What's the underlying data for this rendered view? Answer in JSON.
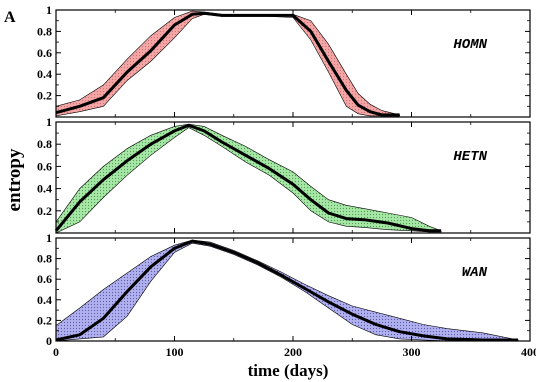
{
  "figure": {
    "panel_letter": "A",
    "ylabel": "entropy",
    "xlabel": "time (days)",
    "x_ticks": [
      "0",
      "100",
      "200",
      "300",
      "400"
    ],
    "y_ticks": [
      "0.2",
      "0.4",
      "0.6",
      "0.8",
      "1"
    ],
    "bottom_y_ticks": [
      "0",
      "0.2",
      "0.4",
      "0.6",
      "0.8",
      "1"
    ]
  },
  "chart_data": [
    {
      "type": "line",
      "label": "HOMN",
      "xlim": [
        0,
        400
      ],
      "ylim": [
        0,
        1
      ],
      "band_color": "#f4a6a6",
      "band_hatch_color": "#d07070",
      "mean": {
        "x": [
          0,
          20,
          40,
          60,
          80,
          100,
          115,
          125,
          140,
          160,
          180,
          200,
          215,
          230,
          245,
          255,
          265,
          275,
          290
        ],
        "y": [
          0.04,
          0.1,
          0.18,
          0.42,
          0.62,
          0.86,
          0.96,
          0.97,
          0.95,
          0.95,
          0.95,
          0.95,
          0.8,
          0.52,
          0.25,
          0.11,
          0.05,
          0.02,
          0.02
        ]
      },
      "upper": {
        "x": [
          0,
          20,
          40,
          60,
          80,
          100,
          115,
          125,
          140,
          160,
          180,
          200,
          215,
          230,
          245,
          255,
          265,
          275,
          290
        ],
        "y": [
          0.1,
          0.16,
          0.3,
          0.54,
          0.76,
          0.93,
          0.99,
          0.98,
          0.96,
          0.96,
          0.96,
          0.96,
          0.9,
          0.68,
          0.4,
          0.22,
          0.12,
          0.06,
          0.02
        ]
      },
      "lower": {
        "x": [
          0,
          20,
          40,
          60,
          80,
          100,
          115,
          125,
          140,
          160,
          180,
          200,
          215,
          230,
          245,
          255,
          265,
          275,
          290
        ],
        "y": [
          0.01,
          0.05,
          0.1,
          0.34,
          0.52,
          0.74,
          0.92,
          0.96,
          0.94,
          0.94,
          0.94,
          0.93,
          0.72,
          0.42,
          0.1,
          0.03,
          0.01,
          0.01,
          0.01
        ]
      }
    },
    {
      "type": "line",
      "label": "HETN",
      "xlim": [
        0,
        400
      ],
      "ylim": [
        0,
        1
      ],
      "band_color": "#a6e6a6",
      "band_hatch_color": "#50a050",
      "mean": {
        "x": [
          0,
          20,
          40,
          60,
          80,
          100,
          112,
          125,
          140,
          160,
          180,
          200,
          215,
          230,
          245,
          260,
          280,
          300,
          315,
          325
        ],
        "y": [
          0.02,
          0.28,
          0.48,
          0.65,
          0.8,
          0.92,
          0.97,
          0.92,
          0.82,
          0.7,
          0.58,
          0.44,
          0.3,
          0.18,
          0.13,
          0.12,
          0.09,
          0.04,
          0.02,
          0.02
        ]
      },
      "upper": {
        "x": [
          0,
          20,
          40,
          60,
          80,
          100,
          112,
          125,
          140,
          160,
          180,
          200,
          215,
          230,
          245,
          260,
          280,
          300,
          315,
          325
        ],
        "y": [
          0.1,
          0.4,
          0.6,
          0.76,
          0.88,
          0.96,
          0.98,
          0.96,
          0.88,
          0.78,
          0.66,
          0.55,
          0.42,
          0.3,
          0.25,
          0.22,
          0.18,
          0.14,
          0.06,
          0.02
        ]
      },
      "lower": {
        "x": [
          0,
          20,
          40,
          60,
          80,
          100,
          112,
          125,
          140,
          160,
          180,
          200,
          215,
          230,
          245,
          260,
          280,
          300,
          315,
          325
        ],
        "y": [
          0.0,
          0.1,
          0.32,
          0.52,
          0.7,
          0.86,
          0.95,
          0.88,
          0.78,
          0.64,
          0.52,
          0.36,
          0.2,
          0.1,
          0.06,
          0.05,
          0.03,
          0.02,
          0.01,
          0.01
        ]
      }
    },
    {
      "type": "line",
      "label": "WAN",
      "xlim": [
        0,
        400
      ],
      "ylim": [
        0,
        1
      ],
      "band_color": "#b0b0ee",
      "band_hatch_color": "#5a5ab0",
      "mean": {
        "x": [
          0,
          20,
          40,
          60,
          80,
          100,
          115,
          130,
          150,
          170,
          190,
          210,
          230,
          250,
          270,
          290,
          310,
          330,
          360,
          390
        ],
        "y": [
          0.01,
          0.06,
          0.22,
          0.48,
          0.72,
          0.9,
          0.97,
          0.94,
          0.86,
          0.76,
          0.64,
          0.51,
          0.38,
          0.26,
          0.16,
          0.09,
          0.05,
          0.02,
          0.01,
          0.01
        ]
      },
      "upper": {
        "x": [
          0,
          20,
          40,
          60,
          80,
          100,
          115,
          130,
          150,
          170,
          190,
          210,
          230,
          250,
          270,
          290,
          310,
          330,
          360,
          390
        ],
        "y": [
          0.15,
          0.32,
          0.5,
          0.66,
          0.82,
          0.93,
          0.98,
          0.96,
          0.88,
          0.78,
          0.67,
          0.55,
          0.44,
          0.34,
          0.28,
          0.22,
          0.16,
          0.12,
          0.08,
          0.01
        ]
      },
      "lower": {
        "x": [
          0,
          20,
          40,
          60,
          80,
          100,
          115,
          130,
          150,
          170,
          190,
          210,
          230,
          250,
          270,
          290,
          310,
          330,
          360,
          390
        ],
        "y": [
          0.0,
          0.02,
          0.04,
          0.24,
          0.58,
          0.86,
          0.95,
          0.92,
          0.84,
          0.74,
          0.62,
          0.48,
          0.32,
          0.16,
          0.06,
          0.02,
          0.01,
          0.0,
          0.0,
          0.0
        ]
      }
    }
  ]
}
